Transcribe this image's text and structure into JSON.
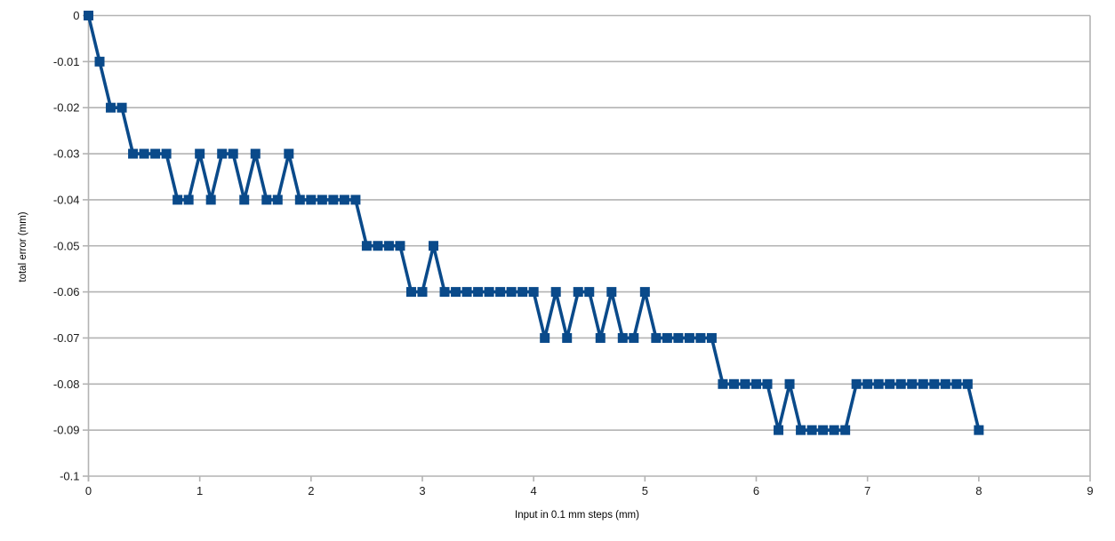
{
  "chart_data": {
    "type": "line",
    "title": "",
    "xlabel": "Input in 0.1 mm steps (mm)",
    "ylabel": "total error (mm)",
    "x_start": 0,
    "x_step": 0.1,
    "x": [
      0.0,
      0.1,
      0.2,
      0.3,
      0.4,
      0.5,
      0.6,
      0.7,
      0.8,
      0.9,
      1.0,
      1.1,
      1.2,
      1.3,
      1.4,
      1.5,
      1.6,
      1.7,
      1.8,
      1.9,
      2.0,
      2.1,
      2.2,
      2.3,
      2.4,
      2.5,
      2.6,
      2.7,
      2.8,
      2.9,
      3.0,
      3.1,
      3.2,
      3.3,
      3.4,
      3.5,
      3.6,
      3.7,
      3.8,
      3.9,
      4.0,
      4.1,
      4.2,
      4.3,
      4.4,
      4.5,
      4.6,
      4.7,
      4.8,
      4.9,
      5.0,
      5.1,
      5.2,
      5.3,
      5.4,
      5.5,
      5.6,
      5.7,
      5.8,
      5.9,
      6.0,
      6.1,
      6.2,
      6.3,
      6.4,
      6.5,
      6.6,
      6.7,
      6.8,
      6.9,
      7.0,
      7.1,
      7.2,
      7.3,
      7.4,
      7.5,
      7.6,
      7.7,
      7.8,
      7.9,
      8.0
    ],
    "values": [
      0,
      -0.01,
      -0.02,
      -0.02,
      -0.03,
      -0.03,
      -0.03,
      -0.03,
      -0.04,
      -0.04,
      -0.03,
      -0.04,
      -0.03,
      -0.03,
      -0.04,
      -0.03,
      -0.04,
      -0.04,
      -0.03,
      -0.04,
      -0.04,
      -0.04,
      -0.04,
      -0.04,
      -0.04,
      -0.05,
      -0.05,
      -0.05,
      -0.05,
      -0.06,
      -0.06,
      -0.05,
      -0.06,
      -0.06,
      -0.06,
      -0.06,
      -0.06,
      -0.06,
      -0.06,
      -0.06,
      -0.06,
      -0.07,
      -0.06,
      -0.07,
      -0.06,
      -0.06,
      -0.07,
      -0.06,
      -0.07,
      -0.07,
      -0.06,
      -0.07,
      -0.07,
      -0.07,
      -0.07,
      -0.07,
      -0.07,
      -0.08,
      -0.08,
      -0.08,
      -0.08,
      -0.08,
      -0.09,
      -0.08,
      -0.09,
      -0.09,
      -0.09,
      -0.09,
      -0.09,
      -0.08,
      -0.08,
      -0.08,
      -0.08,
      -0.08,
      -0.08,
      -0.08,
      -0.08,
      -0.08,
      -0.08,
      -0.08,
      -0.09
    ],
    "xlim": [
      0,
      9
    ],
    "ylim": [
      -0.1,
      0
    ],
    "x_tick_labels": [
      "0",
      "1",
      "2",
      "3",
      "4",
      "5",
      "6",
      "7",
      "8",
      "9"
    ],
    "y_tick_labels": [
      "0",
      "-0.01",
      "-0.02",
      "-0.03",
      "-0.04",
      "-0.05",
      "-0.06",
      "-0.07",
      "-0.08",
      "-0.09",
      "-0.1"
    ],
    "series_color": "#0a4a8a",
    "grid_color": "#b3b3b3",
    "marker": "square",
    "legend": "none",
    "grid": "horizontal"
  }
}
